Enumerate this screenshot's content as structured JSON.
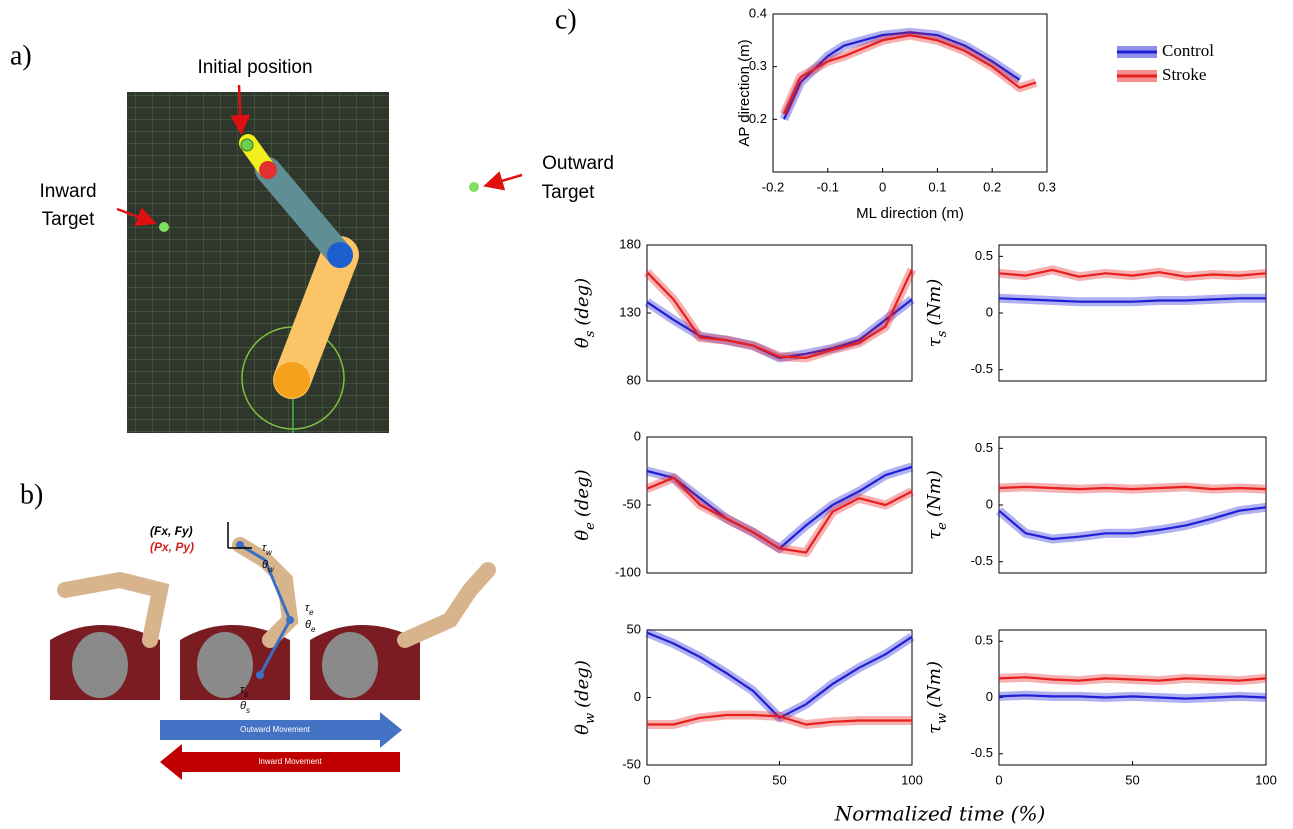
{
  "figure": {
    "panel_labels": [
      "a)",
      "b)",
      "c)"
    ],
    "panel_a": {
      "initial": "Initial position",
      "inward": [
        "Inward",
        "Target"
      ],
      "outward": [
        "Outward",
        "Target"
      ]
    },
    "panel_b": {
      "force": "(Fx, Fy)",
      "position": "(Px, Py)",
      "joints": [
        {
          "tau": "τ",
          "theta": "θ",
          "sub": "w"
        },
        {
          "tau": "τ",
          "theta": "θ",
          "sub": "e"
        },
        {
          "tau": "τ",
          "theta": "θ",
          "sub": "s"
        }
      ],
      "outward": "Outward Movement",
      "inward": "Inward Movement"
    },
    "shared_xlabel": "Normalized time (%)"
  },
  "chart_data": [
    {
      "type": "line",
      "xlabel": "ML direction (m)",
      "ylabel": "AP direction (m)",
      "xlim": [
        -0.2,
        0.3
      ],
      "xticks": [
        -0.2,
        -0.1,
        0,
        0.1,
        0.2,
        0.3
      ],
      "ylim": [
        0.1,
        0.4
      ],
      "yticks": [
        0.2,
        0.3,
        0.4
      ],
      "legend": "outside-right",
      "series": [
        {
          "name": "Control",
          "color": "#1f1fd6",
          "x": [
            -0.18,
            -0.15,
            -0.1,
            -0.07,
            0,
            0.05,
            0.1,
            0.15,
            0.2,
            0.25
          ],
          "values": [
            0.2,
            0.27,
            0.32,
            0.34,
            0.36,
            0.365,
            0.36,
            0.34,
            0.31,
            0.275
          ]
        },
        {
          "name": "Stroke",
          "color": "#e81f1f",
          "x": [
            -0.18,
            -0.15,
            -0.1,
            -0.07,
            0,
            0.05,
            0.1,
            0.15,
            0.2,
            0.25,
            0.28
          ],
          "values": [
            0.21,
            0.28,
            0.31,
            0.32,
            0.35,
            0.36,
            0.35,
            0.33,
            0.3,
            0.26,
            0.27
          ]
        }
      ]
    },
    {
      "type": "line",
      "ylabel": {
        "symbol": "θ",
        "sub": "s",
        "unit": "(deg)"
      },
      "x": [
        0,
        10,
        20,
        30,
        40,
        50,
        60,
        70,
        80,
        90,
        100
      ],
      "xlim": [
        0,
        100
      ],
      "ylim": [
        80,
        180
      ],
      "yticks": [
        80,
        130,
        180
      ],
      "series": [
        {
          "name": "Control",
          "color": "#1f1fd6",
          "values": [
            138,
            125,
            113,
            110,
            106,
            97,
            100,
            104,
            110,
            125,
            140
          ]
        },
        {
          "name": "Stroke",
          "color": "#e81f1f",
          "values": [
            160,
            140,
            112,
            110,
            106,
            98,
            97,
            103,
            108,
            120,
            162
          ]
        }
      ]
    },
    {
      "type": "line",
      "ylabel": {
        "symbol": "τ",
        "sub": "s",
        "unit": "(Nm)"
      },
      "x": [
        0,
        10,
        20,
        30,
        40,
        50,
        60,
        70,
        80,
        90,
        100
      ],
      "xlim": [
        0,
        100
      ],
      "ylim": [
        -0.6,
        0.6
      ],
      "yticks": [
        -0.5,
        0,
        0.5
      ],
      "series": [
        {
          "name": "Control",
          "color": "#1f1fd6",
          "values": [
            0.13,
            0.12,
            0.11,
            0.1,
            0.1,
            0.1,
            0.11,
            0.11,
            0.12,
            0.13,
            0.13
          ]
        },
        {
          "name": "Stroke",
          "color": "#e81f1f",
          "values": [
            0.35,
            0.33,
            0.38,
            0.32,
            0.35,
            0.33,
            0.36,
            0.32,
            0.34,
            0.33,
            0.35
          ]
        }
      ]
    },
    {
      "type": "line",
      "ylabel": {
        "symbol": "θ",
        "sub": "e",
        "unit": "(deg)"
      },
      "x": [
        0,
        10,
        20,
        30,
        40,
        50,
        60,
        70,
        80,
        90,
        100
      ],
      "xlim": [
        0,
        100
      ],
      "ylim": [
        -100,
        0
      ],
      "yticks": [
        -100,
        -50,
        0
      ],
      "series": [
        {
          "name": "Control",
          "color": "#1f1fd6",
          "values": [
            -25,
            -30,
            -45,
            -60,
            -70,
            -82,
            -65,
            -50,
            -40,
            -28,
            -22
          ]
        },
        {
          "name": "Stroke",
          "color": "#e81f1f",
          "values": [
            -38,
            -30,
            -50,
            -60,
            -70,
            -82,
            -85,
            -55,
            -45,
            -50,
            -40
          ]
        }
      ]
    },
    {
      "type": "line",
      "ylabel": {
        "symbol": "τ",
        "sub": "e",
        "unit": "(Nm)"
      },
      "x": [
        0,
        10,
        20,
        30,
        40,
        50,
        60,
        70,
        80,
        90,
        100
      ],
      "xlim": [
        0,
        100
      ],
      "ylim": [
        -0.6,
        0.6
      ],
      "yticks": [
        -0.5,
        0,
        0.5
      ],
      "series": [
        {
          "name": "Control",
          "color": "#1f1fd6",
          "values": [
            -0.05,
            -0.25,
            -0.3,
            -0.28,
            -0.25,
            -0.25,
            -0.22,
            -0.18,
            -0.12,
            -0.05,
            -0.02
          ]
        },
        {
          "name": "Stroke",
          "color": "#e81f1f",
          "values": [
            0.15,
            0.16,
            0.15,
            0.14,
            0.15,
            0.14,
            0.15,
            0.16,
            0.14,
            0.15,
            0.14
          ]
        }
      ]
    },
    {
      "type": "line",
      "ylabel": {
        "symbol": "θ",
        "sub": "w",
        "unit": "(deg)"
      },
      "x": [
        0,
        10,
        20,
        30,
        40,
        50,
        60,
        70,
        80,
        90,
        100
      ],
      "xlim": [
        0,
        100
      ],
      "xticks": [
        0,
        50,
        100
      ],
      "ylim": [
        -50,
        50
      ],
      "yticks": [
        -50,
        0,
        50
      ],
      "series": [
        {
          "name": "Control",
          "color": "#1f1fd6",
          "values": [
            48,
            40,
            30,
            18,
            5,
            -15,
            -5,
            10,
            22,
            32,
            45
          ]
        },
        {
          "name": "Stroke",
          "color": "#e81f1f",
          "values": [
            -20,
            -20,
            -15,
            -13,
            -13,
            -14,
            -20,
            -18,
            -17,
            -17,
            -17
          ]
        }
      ]
    },
    {
      "type": "line",
      "ylabel": {
        "symbol": "τ",
        "sub": "w",
        "unit": "(Nm)"
      },
      "x": [
        0,
        10,
        20,
        30,
        40,
        50,
        60,
        70,
        80,
        90,
        100
      ],
      "xlim": [
        0,
        100
      ],
      "xticks": [
        0,
        50,
        100
      ],
      "ylim": [
        -0.6,
        0.6
      ],
      "yticks": [
        -0.5,
        0,
        0.5
      ],
      "series": [
        {
          "name": "Control",
          "color": "#1f1fd6",
          "values": [
            0.01,
            0.02,
            0.01,
            0.01,
            0.0,
            0.01,
            0.0,
            -0.01,
            0.0,
            0.01,
            0.0
          ]
        },
        {
          "name": "Stroke",
          "color": "#e81f1f",
          "values": [
            0.17,
            0.18,
            0.16,
            0.15,
            0.17,
            0.16,
            0.15,
            0.17,
            0.16,
            0.15,
            0.17
          ]
        }
      ]
    }
  ]
}
